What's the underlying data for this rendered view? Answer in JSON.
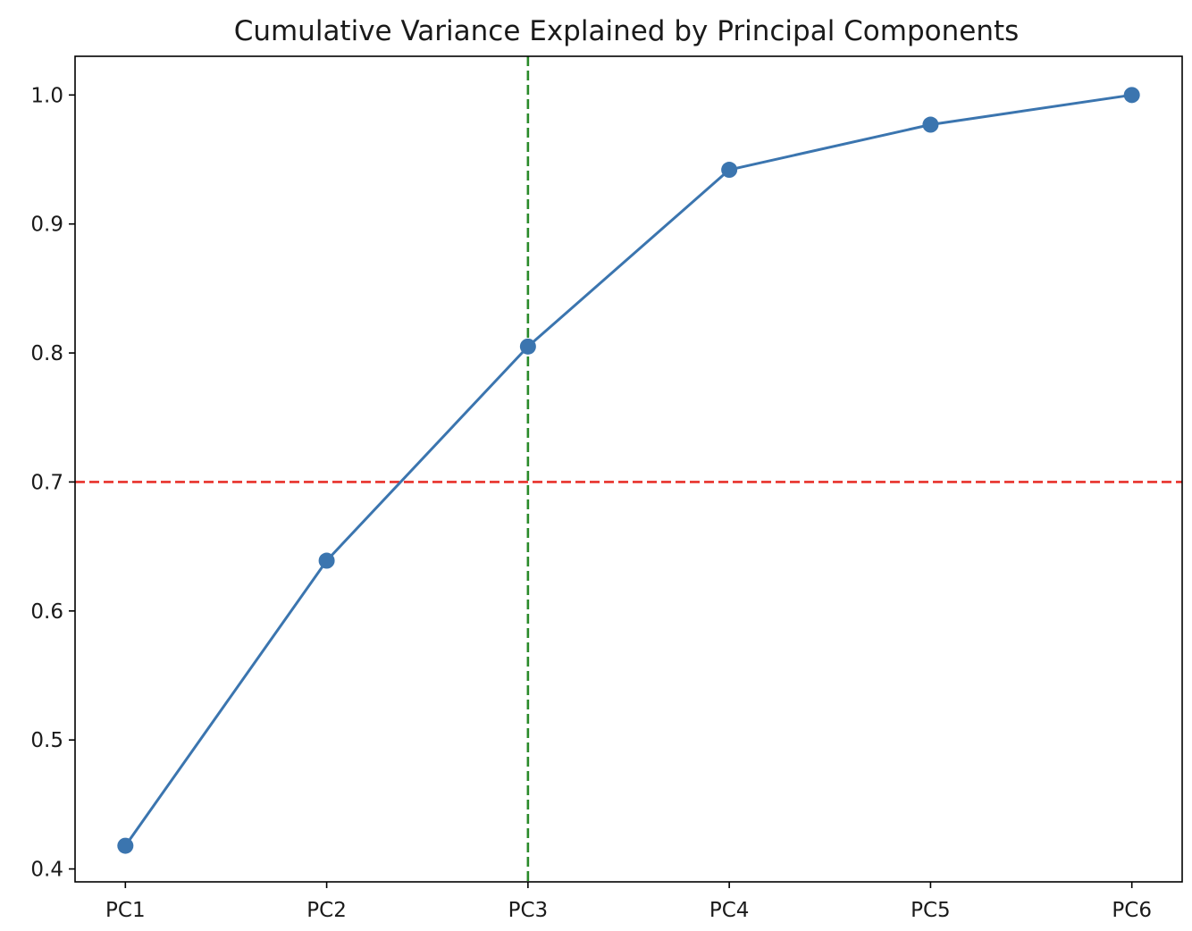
{
  "chart_data": {
    "type": "line",
    "title": "Cumulative Variance Explained by Principal Components",
    "xlabel": "",
    "ylabel": "",
    "categories": [
      "PC1",
      "PC2",
      "PC3",
      "PC4",
      "PC5",
      "PC6"
    ],
    "series": [
      {
        "values": [
          0.418,
          0.639,
          0.805,
          0.942,
          0.977,
          1.0
        ],
        "color": "#3b75af",
        "marker": "circle"
      }
    ],
    "yticks": [
      "0.4",
      "0.5",
      "0.6",
      "0.7",
      "0.8",
      "0.9",
      "1.0"
    ],
    "ylim": [
      0.39,
      1.03
    ],
    "xlim": [
      -0.25,
      5.25
    ],
    "reference_lines": [
      {
        "orientation": "horizontal",
        "value": 0.7,
        "color": "#e8312a",
        "style": "dashed"
      },
      {
        "orientation": "vertical",
        "category": "PC3",
        "color": "#2a8a2a",
        "style": "dashed"
      }
    ],
    "grid": false,
    "legend": "none"
  }
}
